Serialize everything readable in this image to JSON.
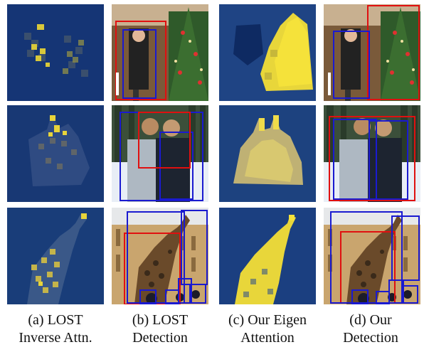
{
  "figure": {
    "columns": [
      {
        "key": "lost-inverse-attn",
        "kind": "heatmap",
        "caption_line1": "(a) LOST",
        "caption_line2": "Inverse Attn."
      },
      {
        "key": "lost-detection",
        "kind": "photo",
        "caption_line1": "(b) LOST",
        "caption_line2": "Detection"
      },
      {
        "key": "eigen-attention",
        "kind": "heatmap",
        "caption_line1": "(c) Our Eigen",
        "caption_line2": "Attention"
      },
      {
        "key": "our-detection",
        "kind": "photo",
        "caption_line1": "(d) Our",
        "caption_line2": "Detection"
      }
    ],
    "rows": [
      "woman-christmas-tree",
      "two-people-snow",
      "giraffe-building"
    ],
    "colors": {
      "heat_low": "#0d2b6b",
      "heat_high": "#f5e23a",
      "box_red": "#e01010",
      "box_blue": "#1a1ad0"
    }
  }
}
